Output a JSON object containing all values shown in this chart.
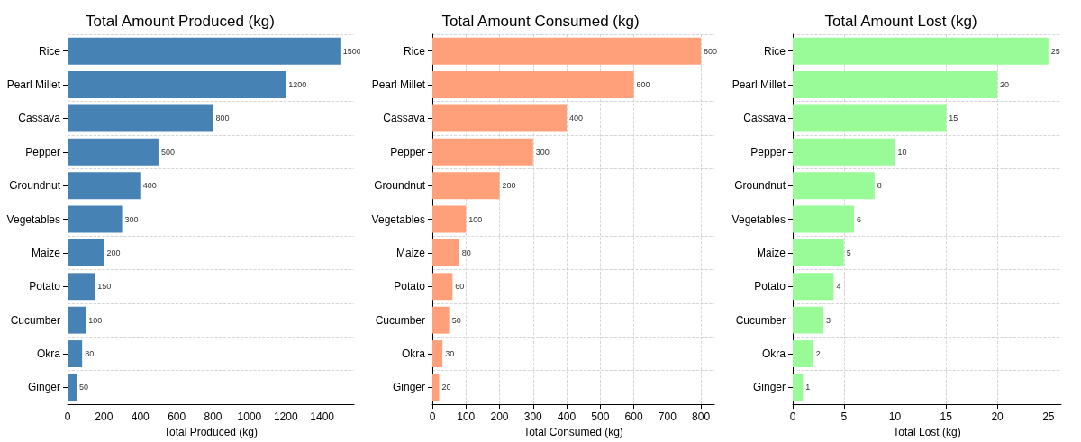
{
  "chart_data": [
    {
      "type": "bar",
      "orientation": "horizontal",
      "title": "Total Amount Produced (kg)",
      "xlabel": "Total Produced (kg)",
      "categories": [
        "Rice",
        "Pearl Millet",
        "Cassava",
        "Pepper",
        "Groundnut",
        "Vegetables",
        "Maize",
        "Potato",
        "Cucumber",
        "Okra",
        "Ginger"
      ],
      "values": [
        1500,
        1200,
        800,
        500,
        400,
        300,
        200,
        150,
        100,
        80,
        50
      ],
      "color": "#4682b4",
      "xlim": [
        0,
        1575
      ],
      "xticks": [
        0,
        200,
        400,
        600,
        800,
        1000,
        1200,
        1400
      ],
      "grid": true,
      "data_labels": true
    },
    {
      "type": "bar",
      "orientation": "horizontal",
      "title": "Total Amount Consumed (kg)",
      "xlabel": "Total Consumed (kg)",
      "categories": [
        "Rice",
        "Pearl Millet",
        "Cassava",
        "Pepper",
        "Groundnut",
        "Vegetables",
        "Maize",
        "Potato",
        "Cucumber",
        "Okra",
        "Ginger"
      ],
      "values": [
        800,
        600,
        400,
        300,
        200,
        100,
        80,
        60,
        50,
        30,
        20
      ],
      "color": "#ffa07a",
      "xlim": [
        0,
        840
      ],
      "xticks": [
        0,
        100,
        200,
        300,
        400,
        500,
        600,
        700,
        800
      ],
      "grid": true,
      "data_labels": true
    },
    {
      "type": "bar",
      "orientation": "horizontal",
      "title": "Total Amount Lost (kg)",
      "xlabel": "Total Lost (kg)",
      "categories": [
        "Rice",
        "Pearl Millet",
        "Cassava",
        "Pepper",
        "Groundnut",
        "Vegetables",
        "Maize",
        "Potato",
        "Cucumber",
        "Okra",
        "Ginger"
      ],
      "values": [
        25,
        20,
        15,
        10,
        8,
        6,
        5,
        4,
        3,
        2,
        1
      ],
      "color": "#98fb98",
      "xlim": [
        0,
        26.25
      ],
      "xticks": [
        0,
        5,
        10,
        15,
        20,
        25
      ],
      "grid": true,
      "data_labels": true
    }
  ]
}
